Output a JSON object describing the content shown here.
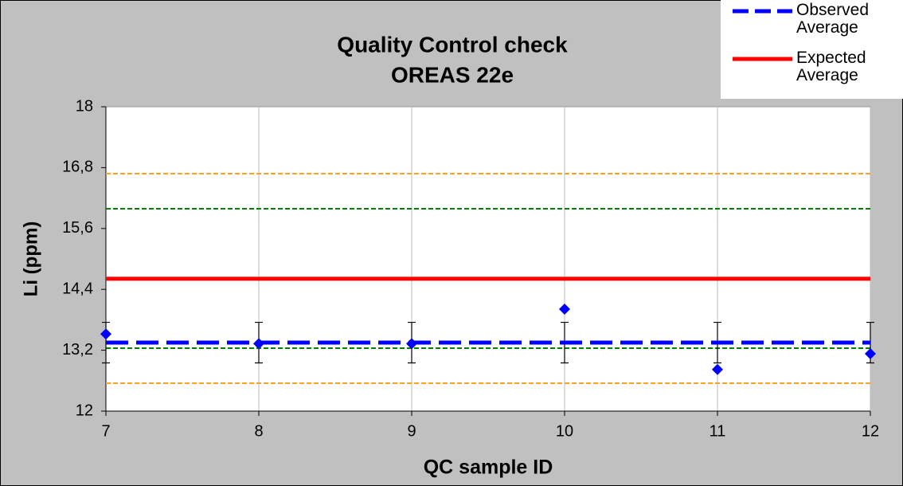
{
  "chart_data": {
    "type": "line",
    "title": "Quality Control check",
    "subtitle": "OREAS 22e",
    "xlabel": "QC sample ID",
    "ylabel": "Li (ppm)",
    "x": [
      7,
      8,
      9,
      10,
      11,
      12
    ],
    "xlim": [
      7,
      12
    ],
    "xticks": [
      7,
      8,
      9,
      10,
      11,
      12
    ],
    "ylim": [
      12,
      18
    ],
    "yticks": [
      {
        "value": 12,
        "label": "12"
      },
      {
        "value": 13.2,
        "label": "13,2"
      },
      {
        "value": 14.4,
        "label": "14,4"
      },
      {
        "value": 15.6,
        "label": "15,6"
      },
      {
        "value": 16.8,
        "label": "16,8"
      },
      {
        "value": 18,
        "label": "18"
      }
    ],
    "grid": "x",
    "legend": "top-right",
    "series": [
      {
        "color": "#0000ff",
        "style": "markers",
        "values": [
          13.52,
          13.33,
          13.33,
          14.01,
          12.82,
          13.13
        ]
      },
      {
        "name": "Observed Average",
        "color": "#0000ff",
        "style": "dashed",
        "values": [
          13.35,
          13.35,
          13.35,
          13.35,
          13.35,
          13.35
        ],
        "errors": [
          0.4,
          0.4,
          0.4,
          0.4,
          0.4,
          0.4
        ]
      },
      {
        "name": "Expected Average",
        "color": "#ff0000",
        "style": "solid",
        "values": [
          14.61,
          14.61,
          14.61,
          14.61,
          14.61,
          14.61
        ]
      },
      {
        "color": "#008000",
        "style": "dotted",
        "values": [
          15.99,
          15.99,
          15.99,
          15.99,
          15.99,
          15.99
        ]
      },
      {
        "color": "#008000",
        "style": "dotted",
        "values": [
          13.24,
          13.24,
          13.24,
          13.24,
          13.24,
          13.24
        ]
      },
      {
        "color": "#ffa020",
        "style": "dotted",
        "values": [
          16.68,
          16.68,
          16.68,
          16.68,
          16.68,
          16.68
        ]
      },
      {
        "color": "#ffa020",
        "style": "dotted",
        "values": [
          12.55,
          12.55,
          12.55,
          12.55,
          12.55,
          12.55
        ]
      }
    ]
  }
}
